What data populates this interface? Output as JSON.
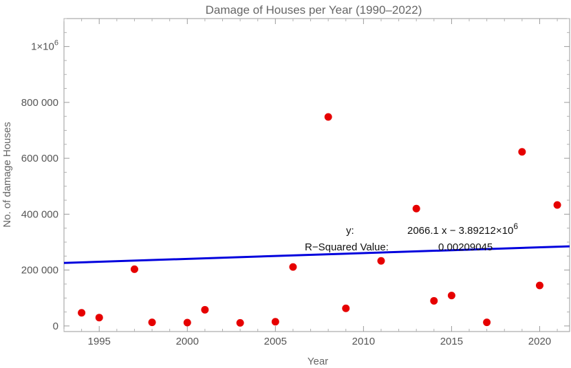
{
  "chart_data": {
    "type": "scatter",
    "title": "Damage of Houses per Year (1990–2022)",
    "xlabel": "Year",
    "ylabel": "No. of damage Houses",
    "xlim": [
      1993,
      2021.7
    ],
    "ylim": [
      -20000,
      1100000
    ],
    "x_ticks": [
      1995,
      2000,
      2005,
      2010,
      2015,
      2020
    ],
    "y_ticks": [
      {
        "value": 0,
        "label": "0"
      },
      {
        "value": 200000,
        "label": "200 000"
      },
      {
        "value": 400000,
        "label": "400 000"
      },
      {
        "value": 600000,
        "label": "600 000"
      },
      {
        "value": 800000,
        "label": "800 000"
      },
      {
        "value": 1000000,
        "label": "1×10",
        "exponent": "6"
      }
    ],
    "points_color": "#e60000",
    "line_color": "#0000dd",
    "points": [
      {
        "x": 1994,
        "y": 47000
      },
      {
        "x": 1995,
        "y": 30000
      },
      {
        "x": 1997,
        "y": 203000
      },
      {
        "x": 1998,
        "y": 13000
      },
      {
        "x": 2000,
        "y": 12000
      },
      {
        "x": 2001,
        "y": 58000
      },
      {
        "x": 2003,
        "y": 11000
      },
      {
        "x": 2005,
        "y": 15000
      },
      {
        "x": 2006,
        "y": 211000
      },
      {
        "x": 2008,
        "y": 748000
      },
      {
        "x": 2009,
        "y": 63000
      },
      {
        "x": 2011,
        "y": 233000
      },
      {
        "x": 2013,
        "y": 420000
      },
      {
        "x": 2014,
        "y": 90000
      },
      {
        "x": 2015,
        "y": 109000
      },
      {
        "x": 2017,
        "y": 13000
      },
      {
        "x": 2019,
        "y": 623000
      },
      {
        "x": 2020,
        "y": 145000
      },
      {
        "x": 2021,
        "y": 433000
      }
    ],
    "fit": {
      "slope": 2066.1,
      "intercept": -3892120
    },
    "annotations": {
      "y_label": "y:",
      "equation": "2066.1 x − 3.89212×10",
      "equation_exponent": "6",
      "r2_label": "R−Squared Value:",
      "r2_value": "0.00209045"
    }
  }
}
